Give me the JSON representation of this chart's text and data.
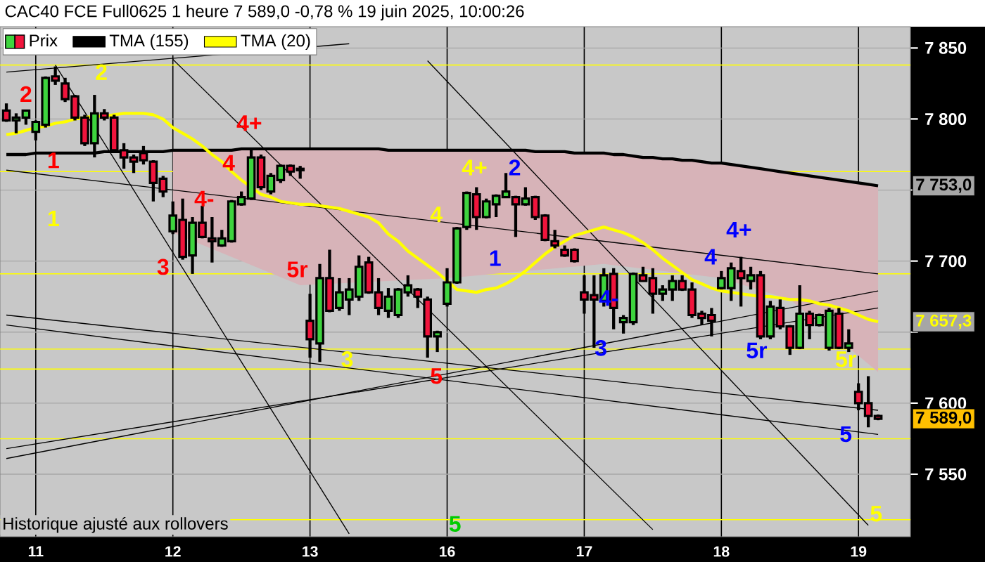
{
  "chart_data": {
    "type": "candlestick",
    "title": "CAC40 FCE Full0625 1 heure 7 589,0 -0,78 % 19 juin 2025, 10:00:26",
    "categories": [
      null,
      null,
      null,
      "11",
      null,
      null,
      null,
      null,
      null,
      null,
      null,
      null,
      null,
      null,
      null,
      null,
      null,
      "12",
      null,
      null,
      null,
      null,
      null,
      null,
      null,
      null,
      null,
      null,
      null,
      null,
      null,
      "13",
      null,
      null,
      null,
      null,
      null,
      null,
      null,
      null,
      null,
      null,
      null,
      null,
      null,
      "16",
      null,
      null,
      null,
      null,
      null,
      null,
      null,
      null,
      null,
      null,
      null,
      null,
      null,
      "17",
      null,
      null,
      null,
      null,
      null,
      null,
      null,
      null,
      null,
      null,
      null,
      null,
      null,
      "18",
      null,
      null,
      null,
      null,
      null,
      null,
      null,
      null,
      null,
      null,
      null,
      null,
      null,
      "19",
      null,
      null
    ],
    "ylim": [
      7506,
      7865
    ],
    "yticks": [
      {
        "value": 7550,
        "label": "7 550"
      },
      {
        "value": 7600,
        "label": "7 600"
      },
      {
        "value": 7650,
        "label": null
      },
      {
        "value": 7700,
        "label": "7 700"
      },
      {
        "value": 7750,
        "label": null
      },
      {
        "value": 7800,
        "label": "7 800"
      },
      {
        "value": 7850,
        "label": "7 850"
      }
    ],
    "grid": true,
    "legend": "top left",
    "marker": "none",
    "ref_lines": [
      {
        "axis": "y",
        "value": 7838,
        "color": "#ffff00"
      },
      {
        "axis": "y",
        "value": 7763,
        "color": "#ffff00"
      },
      {
        "axis": "y",
        "value": 7691,
        "color": "#ffff00"
      },
      {
        "axis": "y",
        "value": 7638,
        "color": "#ffff00"
      },
      {
        "axis": "y",
        "value": 7624,
        "color": "#ffff00"
      },
      {
        "axis": "y",
        "value": 7575,
        "color": "#ffff00"
      },
      {
        "axis": "y",
        "value": 7518,
        "color": "#ffff00"
      }
    ],
    "series": [
      {
        "name": "Prix",
        "colors": [
          "#f0143c",
          "#3ed43e",
          "#3ed43e",
          "#3ed43e",
          "#3ed43e",
          "#f0143c",
          "#f0143c",
          "#f0143c",
          "#f0143c",
          "#3ed43e",
          "#f0143c",
          "#f0143c",
          "#f0143c",
          "#f0143c",
          "#f0143c",
          "#f0143c",
          "#f0143c",
          "#3ed43e",
          "#f0143c",
          "#3ed43e",
          "#f0143c",
          "#f0143c",
          "#3ed43e",
          "#3ed43e",
          "#3ed43e",
          "#3ed43e",
          "#f0143c",
          "#3ed43e",
          "#3ed43e",
          "#f0143c",
          "#f0143c",
          "#f0143c",
          "#3ed43e",
          "#f0143c",
          "#3ed43e",
          "#3ed43e",
          "#3ed43e",
          "#f0143c",
          "#f0143c",
          "#3ed43e",
          "#3ed43e",
          "#3ed43e",
          "#f0143c",
          "#f0143c",
          "#3ed43e",
          "#3ed43e",
          "#3ed43e",
          "#3ed43e",
          "#f0143c",
          "#3ed43e",
          "#3ed43e",
          "#3ed43e",
          "#f0143c",
          "#3ed43e",
          "#f0143c",
          "#f0143c",
          "#f0143c",
          "#f0143c",
          "#f0143c",
          "#f0143c",
          "#f0143c",
          "#3ed43e",
          "#f0143c",
          "#3ed43e",
          "#3ed43e",
          "#f0143c",
          "#f0143c",
          "#3ed43e",
          "#3ed43e",
          "#f0143c",
          "#f0143c",
          "#f0143c",
          "#f0143c",
          "#3ed43e",
          "#3ed43e",
          "#f0143c",
          "#3ed43e",
          "#f0143c",
          "#3ed43e",
          "#f0143c",
          "#f0143c",
          "#3ed43e",
          "#f0143c",
          "#3ed43e",
          "#3ed43e",
          "#f0143c",
          "#3ed43e",
          "#f0143c",
          "#f0143c",
          "#f0143c"
        ],
        "ohlc": [
          [
            7806,
            7811,
            7798,
            7799
          ],
          [
            7799,
            7804,
            7790,
            7801
          ],
          [
            7801,
            7806,
            7796,
            7806
          ],
          [
            7791,
            7799,
            7785,
            7798
          ],
          [
            7796,
            7830,
            7794,
            7829
          ],
          [
            7830,
            7837,
            7824,
            7827
          ],
          [
            7825,
            7829,
            7812,
            7814
          ],
          [
            7816,
            7817,
            7799,
            7801
          ],
          [
            7801,
            7803,
            7781,
            7783
          ],
          [
            7783,
            7817,
            7773,
            7804
          ],
          [
            7804,
            7807,
            7799,
            7801
          ],
          [
            7801,
            7803,
            7777,
            7778
          ],
          [
            7778,
            7783,
            7765,
            7773
          ],
          [
            7773,
            7775,
            7762,
            7770
          ],
          [
            7776,
            7781,
            7768,
            7771
          ],
          [
            7770,
            7771,
            7742,
            7755
          ],
          [
            7758,
            7760,
            7745,
            7749
          ],
          [
            7721,
            7742,
            7719,
            7732
          ],
          [
            7729,
            7744,
            7701,
            7703
          ],
          [
            7704,
            7731,
            7691,
            7727
          ],
          [
            7727,
            7739,
            7716,
            7717
          ],
          [
            7716,
            7731,
            7699,
            7714
          ],
          [
            7711,
            7722,
            7710,
            7716
          ],
          [
            7714,
            7743,
            7713,
            7742
          ],
          [
            7740,
            7749,
            7739,
            7745
          ],
          [
            7744,
            7778,
            7743,
            7773
          ],
          [
            7773,
            7775,
            7750,
            7752
          ],
          [
            7749,
            7762,
            7747,
            7760
          ],
          [
            7757,
            7768,
            7755,
            7767
          ],
          [
            7767,
            7768,
            7760,
            7763
          ],
          [
            7765,
            7767,
            7758,
            7764
          ],
          [
            7658,
            7677,
            7632,
            7645
          ],
          [
            7642,
            7698,
            7629,
            7688
          ],
          [
            7688,
            7708,
            7664,
            7665
          ],
          [
            7667,
            7688,
            7665,
            7678
          ],
          [
            7673,
            7688,
            7662,
            7680
          ],
          [
            7675,
            7704,
            7672,
            7696
          ],
          [
            7699,
            7703,
            7677,
            7678
          ],
          [
            7678,
            7688,
            7662,
            7667
          ],
          [
            7665,
            7681,
            7660,
            7675
          ],
          [
            7662,
            7681,
            7660,
            7680
          ],
          [
            7678,
            7690,
            7675,
            7683
          ],
          [
            7680,
            7681,
            7667,
            7675
          ],
          [
            7673,
            7675,
            7632,
            7647
          ],
          [
            7647,
            7651,
            7636,
            7650
          ],
          [
            7670,
            7695,
            7668,
            7685
          ],
          [
            7685,
            7724,
            7684,
            7723
          ],
          [
            7724,
            7749,
            7722,
            7748
          ],
          [
            7747,
            7752,
            7722,
            7731
          ],
          [
            7731,
            7744,
            7730,
            7742
          ],
          [
            7740,
            7747,
            7731,
            7746
          ],
          [
            7745,
            7762,
            7745,
            7749
          ],
          [
            7745,
            7746,
            7717,
            7740
          ],
          [
            7740,
            7752,
            7739,
            7744
          ],
          [
            7745,
            7746,
            7729,
            7731
          ],
          [
            7732,
            7733,
            7714,
            7715
          ],
          [
            7714,
            7722,
            7709,
            7711
          ],
          [
            7708,
            7711,
            7703,
            7704
          ],
          [
            7708,
            7709,
            7699,
            7700
          ],
          [
            7678,
            7690,
            7663,
            7673
          ],
          [
            7676,
            7690,
            7639,
            7673
          ],
          [
            7672,
            7695,
            7668,
            7690
          ],
          [
            7691,
            7695,
            7652,
            7667
          ],
          [
            7657,
            7662,
            7649,
            7660
          ],
          [
            7657,
            7692,
            7655,
            7691
          ],
          [
            7690,
            7696,
            7686,
            7686
          ],
          [
            7688,
            7695,
            7663,
            7677
          ],
          [
            7677,
            7683,
            7672,
            7680
          ],
          [
            7680,
            7690,
            7672,
            7686
          ],
          [
            7686,
            7690,
            7679,
            7680
          ],
          [
            7680,
            7685,
            7660,
            7662
          ],
          [
            7663,
            7665,
            7655,
            7660
          ],
          [
            7662,
            7667,
            7647,
            7658
          ],
          [
            7681,
            7693,
            7680,
            7688
          ],
          [
            7681,
            7699,
            7672,
            7695
          ],
          [
            7693,
            7703,
            7668,
            7688
          ],
          [
            7686,
            7696,
            7680,
            7690
          ],
          [
            7690,
            7693,
            7645,
            7647
          ],
          [
            7647,
            7672,
            7645,
            7668
          ],
          [
            7667,
            7673,
            7652,
            7654
          ],
          [
            7654,
            7655,
            7634,
            7639
          ],
          [
            7639,
            7683,
            7638,
            7663
          ],
          [
            7663,
            7665,
            7645,
            7655
          ],
          [
            7655,
            7663,
            7654,
            7662
          ],
          [
            7639,
            7667,
            7637,
            7665
          ],
          [
            7663,
            7667,
            7638,
            7639
          ],
          [
            7639,
            7652,
            7636,
            7642
          ],
          [
            7608,
            7614,
            7595,
            7600
          ],
          [
            7600,
            7619,
            7583,
            7591
          ],
          [
            7591,
            7592,
            7588,
            7589
          ]
        ]
      },
      {
        "name": "TMA (155)",
        "type": "line",
        "color": "#000000",
        "values": [
          7775,
          7775,
          7775,
          7776,
          7776,
          7776,
          7776,
          7776,
          7776,
          7776,
          7777,
          7777,
          7777,
          7777,
          7777,
          7777,
          7777,
          7778,
          7778,
          7778,
          7778,
          7778,
          7778,
          7778,
          7779,
          7779,
          7779,
          7779,
          7779,
          7779,
          7779,
          7779,
          7779,
          7779,
          7779,
          7779,
          7779,
          7779,
          7779,
          7778,
          7778,
          7778,
          7778,
          7778,
          7778,
          7778,
          7778,
          7778,
          7778,
          7778,
          7778,
          7778,
          7778,
          7778,
          7777,
          7777,
          7777,
          7777,
          7776,
          7776,
          7776,
          7776,
          7775,
          7775,
          7774,
          7773,
          7773,
          7772,
          7772,
          7771,
          7771,
          7770,
          7769,
          7769,
          7768,
          7767,
          7766,
          7765,
          7764,
          7763,
          7762,
          7761,
          7760,
          7759,
          7758,
          7757,
          7756,
          7755,
          7754,
          7753
        ],
        "upper": [
          null,
          null,
          null,
          null,
          null,
          null,
          null,
          null,
          null,
          null,
          null,
          null,
          null,
          null,
          null,
          null,
          null,
          7778,
          null,
          null,
          null,
          null,
          null,
          null,
          null,
          null,
          null,
          null,
          null,
          null,
          7779,
          null,
          null,
          null,
          null,
          null,
          null,
          null,
          null,
          null,
          null,
          null,
          null,
          null,
          null,
          7778,
          null,
          null,
          null,
          null,
          null,
          null,
          null,
          null,
          null,
          null,
          null,
          null,
          null,
          null,
          null,
          7776,
          null,
          null,
          null,
          null,
          null,
          null,
          null,
          null,
          null,
          null,
          null,
          7769,
          null,
          null,
          null,
          null,
          null,
          null,
          7762,
          null,
          null,
          null,
          null,
          null,
          null,
          null,
          null,
          7753
        ],
        "lower": [
          null,
          null,
          null,
          null,
          null,
          null,
          null,
          null,
          null,
          null,
          null,
          null,
          null,
          null,
          null,
          null,
          null,
          7720,
          null,
          null,
          null,
          null,
          null,
          null,
          null,
          null,
          null,
          null,
          null,
          null,
          7683,
          null,
          null,
          null,
          null,
          null,
          null,
          null,
          null,
          null,
          null,
          null,
          null,
          null,
          null,
          7688,
          null,
          null,
          null,
          null,
          null,
          null,
          null,
          null,
          null,
          null,
          null,
          null,
          null,
          null,
          null,
          7698,
          null,
          null,
          null,
          null,
          null,
          null,
          null,
          null,
          null,
          null,
          null,
          7688,
          null,
          null,
          null,
          null,
          null,
          null,
          7673,
          null,
          null,
          null,
          null,
          null,
          null,
          null,
          null,
          7622
        ]
      },
      {
        "name": "TMA (20)",
        "type": "line",
        "color": "#ffff00",
        "values": [
          7789,
          7790,
          7792,
          7794,
          7795,
          7797,
          7798,
          7800,
          7801,
          7802,
          7802,
          7803,
          7804,
          7804,
          7804,
          7803,
          7800,
          7794,
          7790,
          7786,
          7781,
          7775,
          7770,
          7763,
          7757,
          7752,
          7747,
          7745,
          7742,
          7741,
          7740,
          7740,
          7739,
          7738,
          7737,
          7735,
          7733,
          7731,
          7727,
          7719,
          7714,
          7707,
          7702,
          7697,
          7692,
          7686,
          7680,
          7679,
          7678,
          7680,
          7681,
          7684,
          7688,
          7693,
          7699,
          7705,
          7710,
          7714,
          7718,
          7720,
          7722,
          7724,
          7722,
          7720,
          7717,
          7713,
          7708,
          7702,
          7697,
          7692,
          7687,
          7684,
          7681,
          7679,
          7678,
          7677,
          7676,
          7675,
          7675,
          7674,
          7673,
          7673,
          7672,
          7670,
          7669,
          7667,
          7665,
          7662,
          7659,
          7657.3
        ]
      },
      {
        "type": "line",
        "color": "#000000",
        "values": [
          null,
          null,
          null,
          null,
          null,
          7838,
          null,
          null,
          null,
          null,
          null,
          null,
          null,
          null,
          null,
          null,
          null,
          null,
          null,
          null,
          null,
          null,
          null,
          null,
          null,
          null,
          null,
          null,
          null,
          null,
          null,
          null,
          null,
          null,
          null,
          7508,
          null,
          null,
          null,
          null,
          null,
          null,
          null,
          null,
          null,
          null,
          null,
          null,
          null,
          null,
          null,
          null,
          null,
          null,
          null,
          null,
          null,
          null,
          null,
          null,
          null,
          null,
          null,
          null,
          null,
          null,
          null,
          null,
          null,
          null,
          null,
          null,
          null,
          null,
          null,
          null,
          null,
          null,
          null,
          null,
          null,
          null,
          null,
          null,
          null,
          null,
          null,
          null,
          null,
          null
        ]
      },
      {
        "type": "line",
        "color": "#000000",
        "values": [
          null,
          null,
          null,
          null,
          null,
          null,
          null,
          null,
          null,
          null,
          null,
          null,
          null,
          null,
          null,
          null,
          null,
          7842,
          null,
          null,
          null,
          null,
          null,
          null,
          null,
          null,
          null,
          null,
          null,
          null,
          null,
          null,
          null,
          null,
          null,
          null,
          null,
          null,
          null,
          null,
          null,
          null,
          null,
          null,
          null,
          null,
          null,
          null,
          null,
          null,
          null,
          null,
          null,
          null,
          null,
          null,
          null,
          null,
          null,
          null,
          null,
          null,
          null,
          null,
          null,
          null,
          7511,
          null,
          null,
          null,
          null,
          null,
          null,
          null,
          null,
          null,
          null,
          null,
          null,
          null,
          null,
          null,
          null,
          null,
          null,
          null,
          null,
          null,
          null,
          null
        ]
      },
      {
        "type": "line",
        "color": "#000000",
        "values": [
          null,
          null,
          null,
          null,
          null,
          null,
          null,
          null,
          null,
          null,
          null,
          null,
          null,
          null,
          null,
          null,
          null,
          null,
          null,
          null,
          null,
          null,
          null,
          null,
          null,
          null,
          null,
          null,
          null,
          null,
          null,
          null,
          null,
          null,
          null,
          null,
          null,
          null,
          null,
          null,
          null,
          null,
          null,
          7841,
          null,
          null,
          null,
          null,
          null,
          null,
          null,
          null,
          null,
          null,
          null,
          null,
          null,
          null,
          null,
          null,
          null,
          null,
          null,
          null,
          null,
          null,
          null,
          null,
          null,
          null,
          null,
          null,
          null,
          null,
          null,
          null,
          null,
          null,
          null,
          null,
          null,
          null,
          null,
          null,
          null,
          null,
          null,
          null,
          7514,
          null
        ]
      },
      {
        "type": "line",
        "color": "#000000",
        "values": [
          7833,
          null,
          null,
          null,
          null,
          null,
          null,
          null,
          null,
          null,
          null,
          null,
          null,
          null,
          null,
          null,
          null,
          null,
          null,
          null,
          null,
          null,
          null,
          null,
          null,
          null,
          null,
          null,
          null,
          null,
          null,
          null,
          null,
          null,
          null,
          7853,
          null,
          null,
          null,
          null,
          null,
          null,
          null,
          null,
          null,
          null,
          null,
          null,
          null,
          null,
          null,
          null,
          null,
          null,
          null,
          null,
          null,
          null,
          null,
          null,
          null,
          null,
          null,
          null,
          null,
          null,
          null,
          null,
          null,
          null,
          null,
          null,
          null,
          null,
          null,
          null,
          null,
          null,
          null,
          null,
          null,
          null,
          null,
          null,
          null,
          null,
          null,
          null,
          null,
          null
        ]
      },
      {
        "type": "line",
        "color": "#000000",
        "values": [
          7561,
          null,
          null,
          null,
          null,
          null,
          null,
          null,
          null,
          null,
          null,
          null,
          null,
          null,
          null,
          null,
          null,
          null,
          null,
          null,
          null,
          null,
          null,
          null,
          null,
          null,
          null,
          null,
          null,
          null,
          null,
          null,
          null,
          null,
          null,
          null,
          null,
          null,
          null,
          null,
          null,
          null,
          null,
          null,
          null,
          null,
          null,
          null,
          null,
          null,
          null,
          null,
          null,
          null,
          null,
          null,
          null,
          null,
          null,
          null,
          null,
          null,
          null,
          null,
          null,
          null,
          null,
          null,
          null,
          null,
          null,
          null,
          null,
          null,
          null,
          null,
          null,
          null,
          null,
          null,
          null,
          null,
          null,
          null,
          null,
          null,
          null,
          null,
          null,
          7679
        ]
      },
      {
        "type": "line",
        "color": "#000000",
        "values": [
          7764,
          null,
          null,
          null,
          null,
          null,
          null,
          null,
          null,
          null,
          null,
          null,
          null,
          null,
          null,
          null,
          null,
          null,
          null,
          null,
          null,
          null,
          null,
          null,
          null,
          null,
          null,
          null,
          null,
          null,
          null,
          null,
          null,
          null,
          null,
          null,
          null,
          null,
          null,
          null,
          null,
          null,
          null,
          null,
          null,
          null,
          null,
          null,
          null,
          null,
          null,
          null,
          null,
          null,
          null,
          null,
          null,
          null,
          null,
          null,
          null,
          null,
          null,
          null,
          null,
          null,
          null,
          null,
          null,
          null,
          null,
          null,
          null,
          null,
          null,
          null,
          null,
          null,
          null,
          null,
          null,
          null,
          null,
          null,
          null,
          null,
          null,
          null,
          null,
          7691
        ]
      },
      {
        "type": "line",
        "color": "#000000",
        "values": [
          7662,
          null,
          null,
          null,
          null,
          null,
          null,
          null,
          null,
          null,
          null,
          null,
          null,
          null,
          null,
          null,
          null,
          null,
          null,
          null,
          null,
          null,
          null,
          null,
          null,
          null,
          null,
          null,
          null,
          null,
          null,
          null,
          null,
          null,
          null,
          null,
          null,
          null,
          null,
          null,
          null,
          null,
          null,
          null,
          null,
          null,
          null,
          null,
          null,
          null,
          null,
          null,
          null,
          null,
          null,
          null,
          null,
          null,
          null,
          null,
          null,
          null,
          null,
          null,
          null,
          null,
          null,
          null,
          null,
          null,
          null,
          null,
          null,
          null,
          null,
          null,
          null,
          null,
          null,
          null,
          null,
          null,
          null,
          null,
          null,
          null,
          null,
          null,
          null,
          7595
        ]
      },
      {
        "type": "line",
        "color": "#000000",
        "values": [
          7568,
          null,
          null,
          null,
          null,
          null,
          null,
          null,
          null,
          null,
          null,
          null,
          null,
          null,
          null,
          null,
          null,
          null,
          null,
          null,
          null,
          null,
          null,
          null,
          null,
          null,
          null,
          null,
          null,
          null,
          null,
          null,
          null,
          null,
          null,
          null,
          null,
          null,
          null,
          null,
          null,
          null,
          null,
          null,
          null,
          null,
          null,
          null,
          null,
          null,
          null,
          null,
          null,
          null,
          null,
          null,
          null,
          null,
          null,
          null,
          null,
          null,
          null,
          null,
          null,
          null,
          null,
          null,
          null,
          null,
          null,
          null,
          null,
          null,
          null,
          null,
          null,
          null,
          null,
          null,
          null,
          null,
          null,
          null,
          null,
          null,
          null,
          null,
          null,
          7667
        ]
      },
      {
        "type": "line",
        "color": "#000000",
        "values": [
          7655,
          null,
          null,
          null,
          null,
          null,
          null,
          null,
          null,
          null,
          null,
          null,
          null,
          null,
          null,
          null,
          null,
          null,
          null,
          null,
          null,
          null,
          null,
          null,
          null,
          null,
          null,
          null,
          null,
          null,
          null,
          null,
          null,
          null,
          null,
          null,
          null,
          null,
          null,
          null,
          null,
          null,
          null,
          null,
          null,
          null,
          null,
          null,
          null,
          null,
          null,
          null,
          null,
          null,
          null,
          null,
          null,
          null,
          null,
          null,
          null,
          null,
          null,
          null,
          null,
          null,
          null,
          null,
          null,
          null,
          null,
          null,
          null,
          null,
          null,
          null,
          null,
          null,
          null,
          null,
          null,
          null,
          null,
          null,
          null,
          null,
          null,
          null,
          null,
          7578
        ]
      }
    ],
    "annotations": [
      "Historique ajusté aux rollovers",
      "7 753,0",
      "7 657,3",
      "7 589,0",
      "2",
      "1",
      "3",
      "4+",
      "4",
      "4-",
      "5r",
      "5",
      "2",
      "1",
      "3",
      "4",
      "4+",
      "5r",
      "5",
      "2",
      "1",
      "4-",
      "3",
      "4",
      "4+",
      "5r",
      "5",
      "5"
    ]
  }
}
